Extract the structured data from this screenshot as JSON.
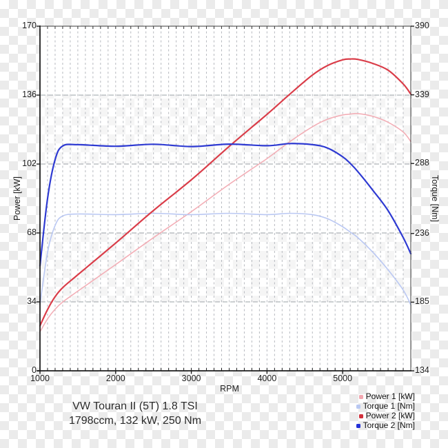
{
  "chart_data": {
    "type": "line",
    "title": "VW Touran II (5T) 1.8 TSI",
    "subtitle": "1798ccm, 132 kW, 250 Nm",
    "background": "transparent-checkerboard",
    "grid": {
      "vertical": "dashed every 100 RPM",
      "horizontal": "dashed at major power ticks",
      "band_rows_transparent": [
        [
          136,
          102
        ],
        [
          68,
          34
        ]
      ]
    },
    "x_axis": {
      "label": "RPM",
      "min": 1000,
      "max": 5900,
      "minor_step": 100,
      "tick_values": [
        1000,
        2000,
        3000,
        4000,
        5000
      ],
      "tick_labels": [
        "1000",
        "2000",
        "3000",
        "4000",
        "5000"
      ]
    },
    "y_left": {
      "label": "Power [kW]",
      "min": 0,
      "max": 170,
      "tick_values": [
        0,
        34,
        68,
        102,
        136,
        170
      ],
      "tick_labels": [
        "0",
        "34",
        "68",
        "102",
        "136",
        "170"
      ]
    },
    "y_right": {
      "label": "Torque [Nm]",
      "min": 134,
      "max": 390,
      "tick_values": [
        134,
        185,
        236,
        288,
        339,
        390
      ],
      "tick_labels": [
        "134",
        "185",
        "236",
        "288",
        "339",
        "390"
      ]
    },
    "rpm": [
      1000,
      1100,
      1200,
      1300,
      1500,
      2000,
      2500,
      3000,
      3500,
      4000,
      4300,
      4600,
      4800,
      5000,
      5100,
      5200,
      5400,
      5600,
      5800,
      5900
    ],
    "series": [
      {
        "name": "Power 1 [kW]",
        "axis": "left",
        "color": "#f3aeb6",
        "width": 1.6,
        "values": [
          19.2,
          25.6,
          30.4,
          33.9,
          39.3,
          52.4,
          65.7,
          78.5,
          92.0,
          104.7,
          113.0,
          120.4,
          124.1,
          126.2,
          126.6,
          126.9,
          125.5,
          122.6,
          117.8,
          113.1
        ]
      },
      {
        "name": "Torque 1 [Nm]",
        "axis": "right",
        "color": "#bac8f3",
        "width": 1.6,
        "values": [
          183,
          222,
          242,
          249,
          250.5,
          250,
          251,
          250,
          251,
          250,
          251,
          250,
          247,
          241,
          237,
          233,
          222,
          209,
          194,
          183
        ]
      },
      {
        "name": "Power 2 [kW]",
        "axis": "left",
        "color": "#da3d49",
        "width": 2.2,
        "values": [
          22.2,
          30.2,
          36.6,
          41.0,
          47.4,
          63.0,
          79.1,
          94.2,
          110.7,
          126.5,
          136.4,
          145.9,
          150.6,
          153.4,
          153.8,
          153.6,
          151.6,
          148.3,
          141.5,
          136.5
        ]
      },
      {
        "name": "Torque 2 [Nm]",
        "axis": "right",
        "color": "#2e3ad2",
        "width": 2.2,
        "values": [
          212,
          262,
          291,
          301,
          302,
          300.8,
          302.3,
          300.6,
          302.4,
          301.2,
          302.8,
          302,
          299.5,
          293,
          288,
          282,
          268,
          253,
          233,
          221
        ]
      }
    ],
    "legend": {
      "position": "bottom-right",
      "items": [
        {
          "label": "Power 1 [kW]",
          "color": "#f2a7b0"
        },
        {
          "label": "Torque 1 [Nm]",
          "color": "#b9c8f2"
        },
        {
          "label": "Power 2 [kW]",
          "color": "#d2303c"
        },
        {
          "label": "Torque 2 [Nm]",
          "color": "#2431d8"
        }
      ]
    }
  }
}
